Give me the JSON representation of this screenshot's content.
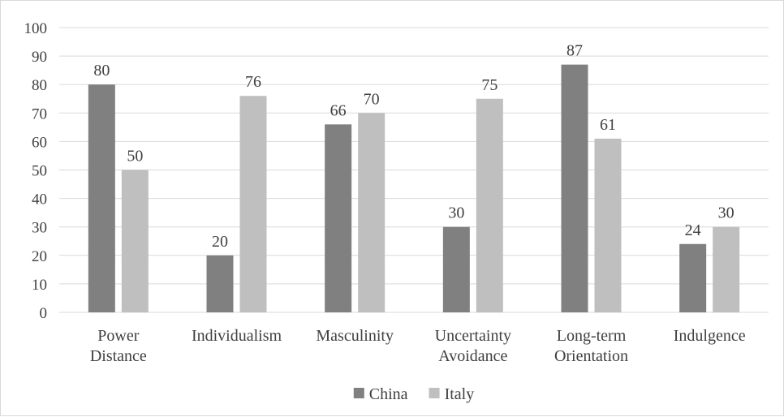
{
  "chart_data": {
    "type": "bar",
    "title": "",
    "xlabel": "",
    "ylabel": "",
    "ylim": [
      0,
      100
    ],
    "yticks": [
      0,
      10,
      20,
      30,
      40,
      50,
      60,
      70,
      80,
      90,
      100
    ],
    "grid": true,
    "legend_position": "bottom",
    "categories": [
      [
        "Power",
        "Distance"
      ],
      [
        "Individualism"
      ],
      [
        "Masculinity"
      ],
      [
        "Uncertainty",
        "Avoidance"
      ],
      [
        "Long-term",
        "Orientation"
      ],
      [
        "Indulgence"
      ]
    ],
    "series": [
      {
        "name": "China",
        "color": "#808080",
        "values": [
          80,
          20,
          66,
          30,
          87,
          24
        ]
      },
      {
        "name": "Italy",
        "color": "#bfbfbf",
        "values": [
          50,
          76,
          70,
          75,
          61,
          30
        ]
      }
    ]
  },
  "colors": {
    "gridline": "#d9d9d9",
    "text": "#404040",
    "border": "#d9d9d9"
  }
}
